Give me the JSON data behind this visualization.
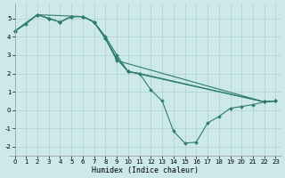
{
  "xlabel": "Humidex (Indice chaleur)",
  "bg_color": "#cce8e8",
  "grid_color": "#b0d0d0",
  "line_color": "#2d7d6e",
  "xlim": [
    -0.5,
    23.5
  ],
  "ylim": [
    -2.5,
    5.8
  ],
  "xticks": [
    0,
    1,
    2,
    3,
    4,
    5,
    6,
    7,
    8,
    9,
    10,
    11,
    12,
    13,
    14,
    15,
    16,
    17,
    18,
    19,
    20,
    21,
    22,
    23
  ],
  "yticks": [
    -2,
    -1,
    0,
    1,
    2,
    3,
    4,
    5
  ],
  "lines": [
    {
      "x": [
        0,
        1,
        2,
        3,
        4,
        5,
        6,
        7,
        8,
        9,
        10,
        11,
        12,
        13,
        14,
        15,
        16,
        17,
        18,
        19,
        20,
        21,
        22,
        23
      ],
      "y": [
        4.3,
        4.7,
        5.2,
        5.0,
        4.8,
        5.1,
        5.1,
        4.8,
        4.0,
        3.0,
        2.1,
        2.0,
        1.1,
        0.5,
        -1.15,
        -1.8,
        -1.75,
        -0.7,
        -0.35,
        0.1,
        0.2,
        0.3,
        0.45,
        0.5
      ]
    },
    {
      "x": [
        0,
        2,
        3,
        4,
        5,
        6,
        7,
        8,
        9,
        10,
        11,
        22,
        23
      ],
      "y": [
        4.3,
        5.2,
        5.0,
        4.8,
        5.1,
        5.1,
        4.8,
        3.9,
        2.8,
        2.1,
        2.0,
        0.45,
        0.5
      ]
    },
    {
      "x": [
        0,
        2,
        3,
        4,
        5,
        6,
        7,
        8,
        9,
        10,
        22,
        23
      ],
      "y": [
        4.3,
        5.2,
        5.0,
        4.8,
        5.1,
        5.1,
        4.8,
        3.9,
        2.8,
        2.1,
        0.45,
        0.5
      ]
    },
    {
      "x": [
        0,
        2,
        6,
        7,
        8,
        9,
        22,
        23
      ],
      "y": [
        4.3,
        5.2,
        5.1,
        4.8,
        3.9,
        2.7,
        0.45,
        0.5
      ]
    }
  ]
}
